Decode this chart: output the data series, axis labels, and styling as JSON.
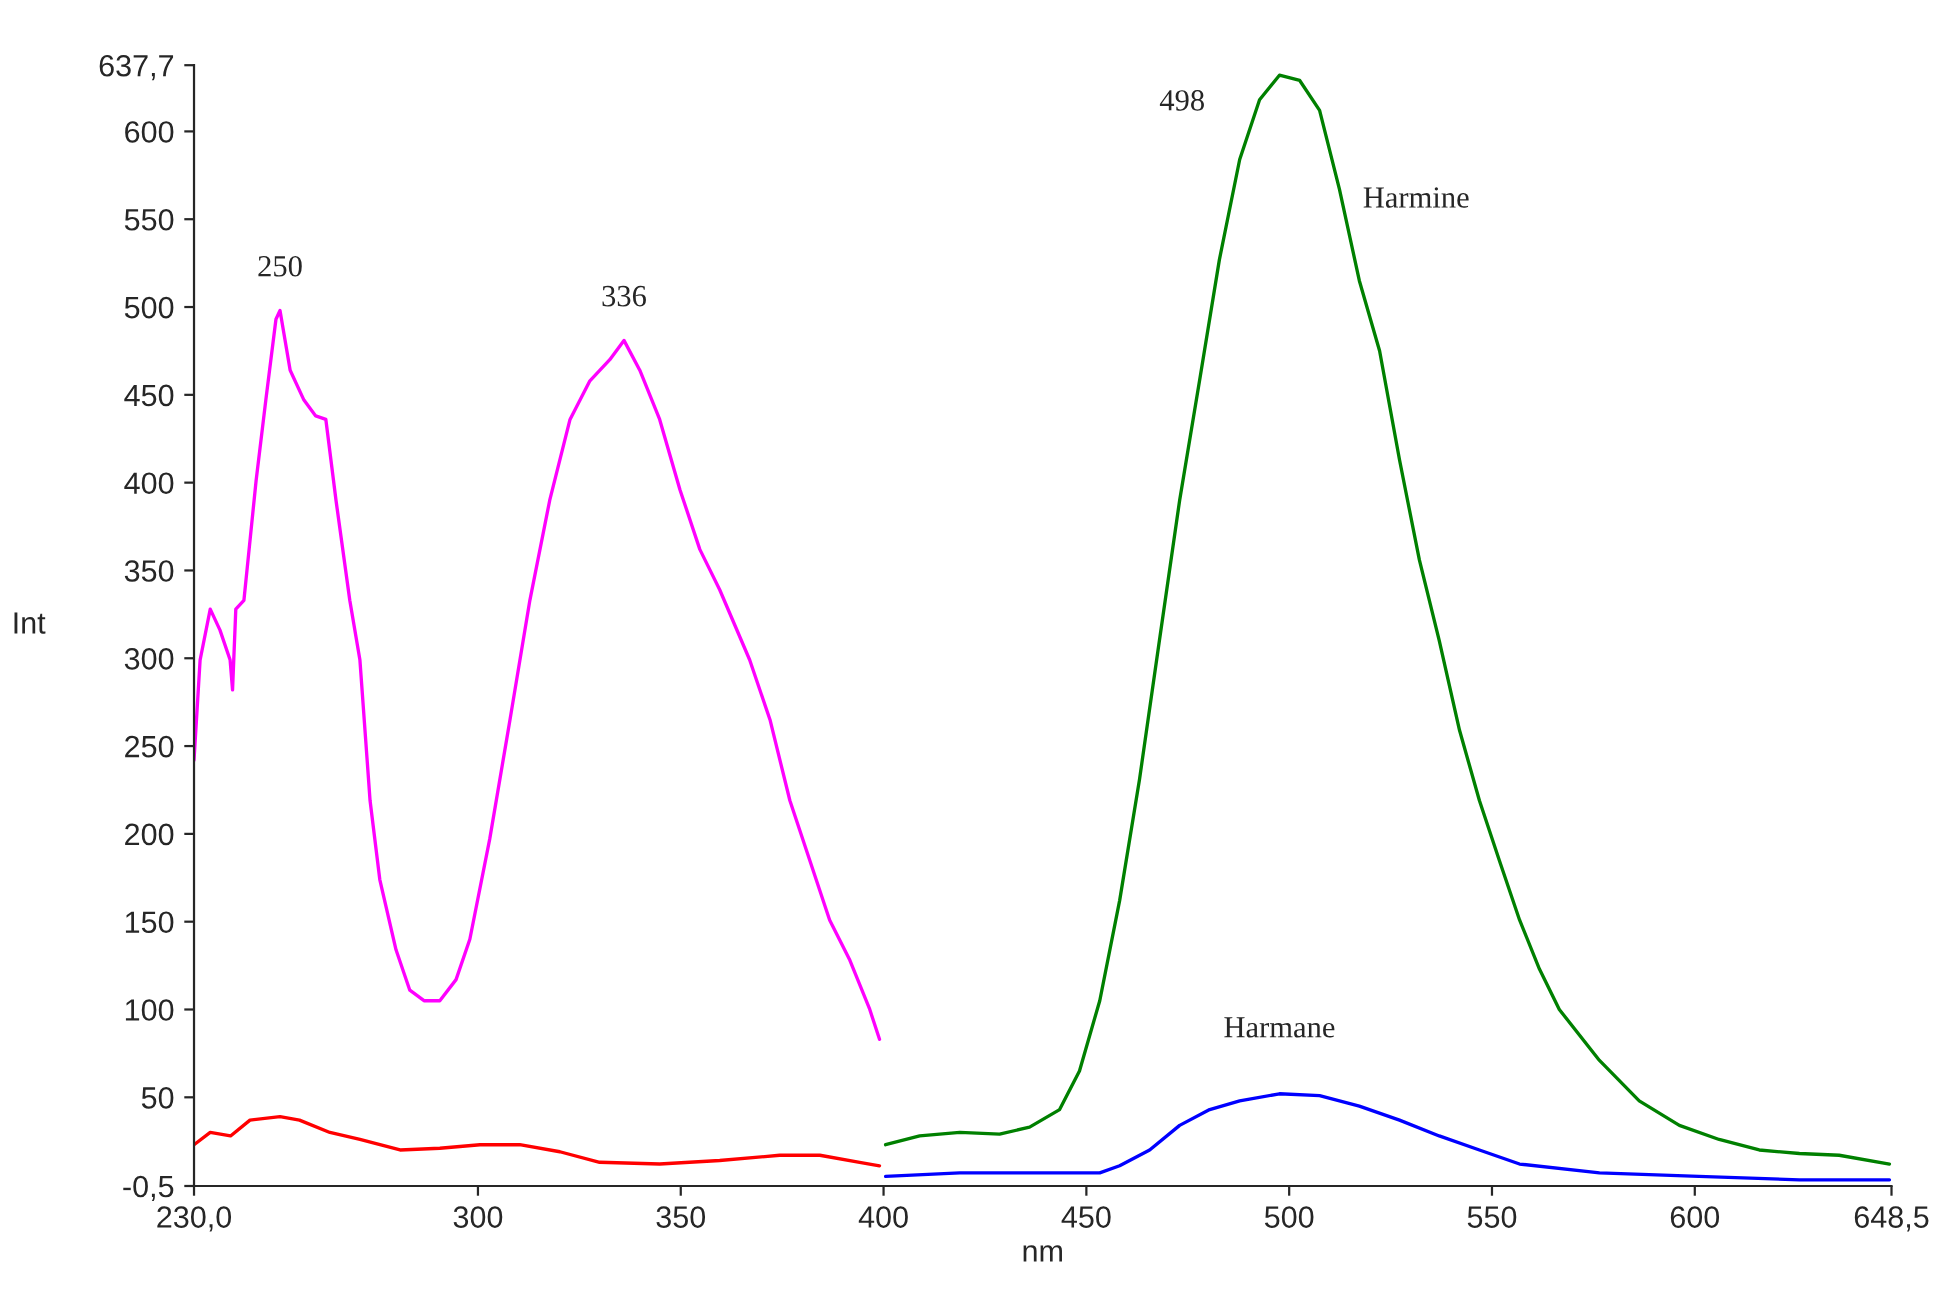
{
  "chart_data": {
    "type": "line",
    "xlabel": "nm",
    "ylabel": "Int",
    "xlim": [
      230.0,
      648.5
    ],
    "ylim": [
      -0.5,
      637.7
    ],
    "xticks": [
      {
        "value": 230.0,
        "label": "230,0"
      },
      300,
      350,
      400,
      450,
      500,
      550,
      600,
      {
        "value": 648.5,
        "label": "648,5"
      }
    ],
    "yticks": [
      {
        "value": -0.5,
        "label": "-0,5"
      },
      50,
      100,
      150,
      200,
      250,
      300,
      350,
      400,
      450,
      500,
      550,
      600,
      {
        "value": 637.7,
        "label": "637,7"
      }
    ],
    "grid": false,
    "legend": false,
    "marker": "none",
    "line_style": "solid",
    "annotations": [
      {
        "text": "250",
        "x": 251.2,
        "y": 498
      },
      {
        "text": "336",
        "x": 336,
        "y": 481
      },
      {
        "text": "498",
        "x": 497.6,
        "y": 632
      }
    ],
    "series": [
      {
        "color": "#ff00ff",
        "x": [
          230,
          231.5,
          234,
          236.4,
          238.9,
          239.5,
          240.3,
          242.3,
          245.3,
          247.7,
          250.2,
          251.2,
          253.7,
          257.1,
          260,
          262.5,
          265,
          268.4,
          270.9,
          273.4,
          275.8,
          279.8,
          283.2,
          286.7,
          290.6,
          294.6,
          298,
          302.9,
          307.9,
          312.8,
          317.7,
          322.7,
          327.6,
          332.5,
          336,
          339.9,
          344.8,
          349.8,
          354.7,
          359.6,
          367,
          372,
          376.9,
          381.8,
          386.7,
          391.7,
          396.6,
          399
        ],
        "values": [
          242,
          299,
          328,
          316,
          299,
          282,
          328,
          333,
          401,
          447,
          493,
          498,
          464,
          447,
          438,
          436,
          390,
          333,
          299,
          219,
          174,
          134,
          111,
          105,
          105,
          117,
          140,
          197,
          265,
          333,
          390,
          436,
          458,
          470,
          481,
          464,
          436,
          396,
          362,
          339,
          299,
          265,
          219,
          185,
          151,
          128,
          100,
          83
        ]
      },
      {
        "color": "#ff0000",
        "x": [
          230,
          234,
          239,
          243.8,
          251.2,
          256,
          263.5,
          270.9,
          280.8,
          290.6,
          300.5,
          310.3,
          320.2,
          330,
          344.8,
          359.6,
          374.4,
          384.3,
          394.1,
          399
        ],
        "values": [
          23,
          30,
          28,
          37,
          39,
          37,
          30,
          26,
          20,
          21,
          23,
          23,
          19,
          13,
          12,
          14,
          17,
          17,
          13,
          11
        ]
      },
      {
        "name": "Harmine",
        "color": "#008000",
        "x": [
          400.5,
          408.9,
          418.8,
          428.6,
          436,
          443.4,
          448.3,
          453.3,
          458.2,
          463.1,
          468,
          473,
          477.9,
          482.8,
          487.8,
          492.7,
          497.6,
          502.6,
          507.5,
          512.4,
          517.3,
          522.3,
          527.2,
          532.1,
          537,
          542,
          546.9,
          551.8,
          556.8,
          561.7,
          566.6,
          576.5,
          586.3,
          596.2,
          606,
          615.9,
          625.8,
          635.6,
          648
        ],
        "values": [
          23,
          28,
          30,
          29,
          33,
          43,
          65,
          105,
          162,
          231,
          310,
          390,
          458,
          527,
          584,
          618,
          632,
          629,
          612,
          567,
          515,
          475,
          413,
          356,
          310,
          259,
          219,
          185,
          151,
          123,
          100,
          71,
          48,
          34,
          26,
          20,
          18,
          17,
          12
        ]
      },
      {
        "name": "Harmane",
        "color": "#0000ff",
        "x": [
          400.5,
          418.8,
          438.5,
          453.3,
          458.2,
          465.6,
          473,
          480.4,
          487.8,
          497.6,
          507.5,
          517.3,
          527.2,
          537,
          546.9,
          556.8,
          576.5,
          601,
          625.8,
          648
        ],
        "values": [
          5,
          7,
          7,
          7,
          11,
          20,
          34,
          43,
          48,
          52,
          51,
          45,
          37,
          28,
          20,
          12,
          7,
          5,
          3,
          3
        ]
      }
    ]
  }
}
